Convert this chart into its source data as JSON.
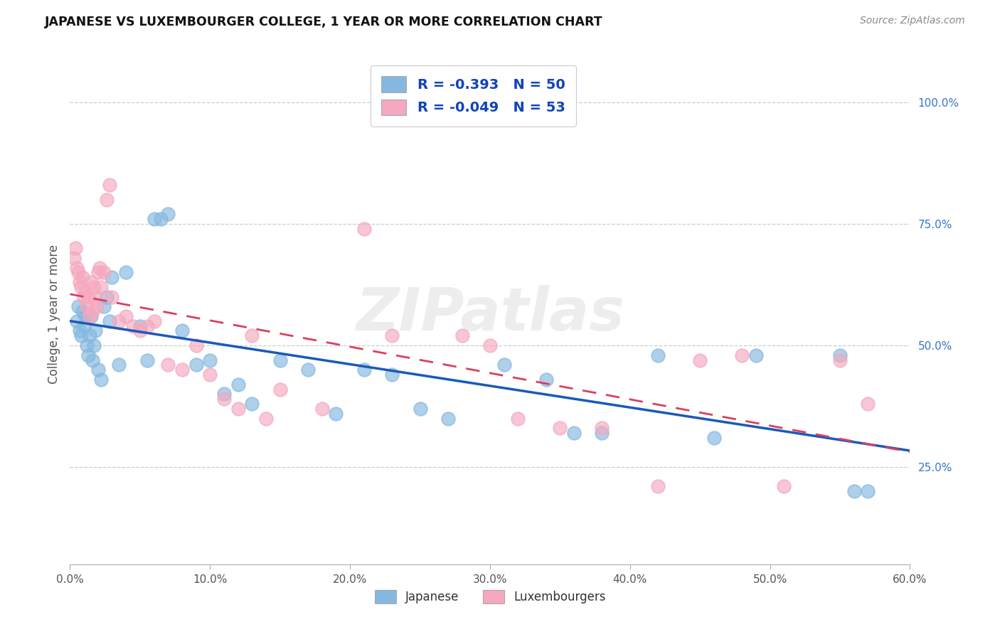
{
  "title": "JAPANESE VS LUXEMBOURGER COLLEGE, 1 YEAR OR MORE CORRELATION CHART",
  "source": "Source: ZipAtlas.com",
  "xlabel_ticks": [
    "0.0%",
    "10.0%",
    "20.0%",
    "30.0%",
    "40.0%",
    "50.0%",
    "60.0%"
  ],
  "ylabel_label": "College, 1 year or more",
  "ylabel_ticks_vals": [
    0.25,
    0.5,
    0.75,
    1.0
  ],
  "ylabel_ticks_labels": [
    "25.0%",
    "50.0%",
    "75.0%",
    "100.0%"
  ],
  "xmin": 0.0,
  "xmax": 0.6,
  "ymin": 0.05,
  "ymax": 1.08,
  "legend_r1": "R = -0.393",
  "legend_n1": "N = 50",
  "legend_r2": "R = -0.049",
  "legend_n2": "N = 53",
  "blue_color": "#85b8e0",
  "pink_color": "#f5a8be",
  "line_blue": "#1a5ab8",
  "line_pink": "#d94060",
  "legend_text_color": "#1144bb",
  "watermark": "ZIPatlas",
  "japanese_x": [
    0.005,
    0.006,
    0.007,
    0.008,
    0.009,
    0.01,
    0.011,
    0.012,
    0.013,
    0.014,
    0.015,
    0.016,
    0.017,
    0.018,
    0.02,
    0.022,
    0.024,
    0.026,
    0.028,
    0.03,
    0.035,
    0.04,
    0.05,
    0.055,
    0.06,
    0.065,
    0.07,
    0.08,
    0.09,
    0.1,
    0.11,
    0.12,
    0.13,
    0.15,
    0.17,
    0.19,
    0.21,
    0.23,
    0.25,
    0.27,
    0.31,
    0.34,
    0.36,
    0.38,
    0.42,
    0.46,
    0.49,
    0.55,
    0.56,
    0.57
  ],
  "japanese_y": [
    0.55,
    0.58,
    0.53,
    0.52,
    0.57,
    0.54,
    0.56,
    0.5,
    0.48,
    0.52,
    0.56,
    0.47,
    0.5,
    0.53,
    0.45,
    0.43,
    0.58,
    0.6,
    0.55,
    0.64,
    0.46,
    0.65,
    0.54,
    0.47,
    0.76,
    0.76,
    0.77,
    0.53,
    0.46,
    0.47,
    0.4,
    0.42,
    0.38,
    0.47,
    0.45,
    0.36,
    0.45,
    0.44,
    0.37,
    0.35,
    0.46,
    0.43,
    0.32,
    0.32,
    0.48,
    0.31,
    0.48,
    0.48,
    0.2,
    0.2
  ],
  "luxembourger_x": [
    0.003,
    0.004,
    0.005,
    0.006,
    0.007,
    0.008,
    0.009,
    0.01,
    0.011,
    0.012,
    0.013,
    0.014,
    0.015,
    0.016,
    0.017,
    0.018,
    0.019,
    0.02,
    0.021,
    0.022,
    0.024,
    0.026,
    0.028,
    0.03,
    0.035,
    0.04,
    0.045,
    0.05,
    0.055,
    0.06,
    0.07,
    0.08,
    0.09,
    0.1,
    0.11,
    0.12,
    0.13,
    0.14,
    0.15,
    0.18,
    0.21,
    0.23,
    0.28,
    0.3,
    0.32,
    0.35,
    0.38,
    0.42,
    0.45,
    0.48,
    0.51,
    0.55,
    0.57
  ],
  "luxembourger_y": [
    0.68,
    0.7,
    0.66,
    0.65,
    0.63,
    0.62,
    0.64,
    0.6,
    0.61,
    0.58,
    0.6,
    0.56,
    0.63,
    0.57,
    0.62,
    0.6,
    0.58,
    0.65,
    0.66,
    0.62,
    0.65,
    0.8,
    0.83,
    0.6,
    0.55,
    0.56,
    0.54,
    0.53,
    0.54,
    0.55,
    0.46,
    0.45,
    0.5,
    0.44,
    0.39,
    0.37,
    0.52,
    0.35,
    0.41,
    0.37,
    0.74,
    0.52,
    0.52,
    0.5,
    0.35,
    0.33,
    0.33,
    0.21,
    0.47,
    0.48,
    0.21,
    0.47,
    0.38
  ]
}
